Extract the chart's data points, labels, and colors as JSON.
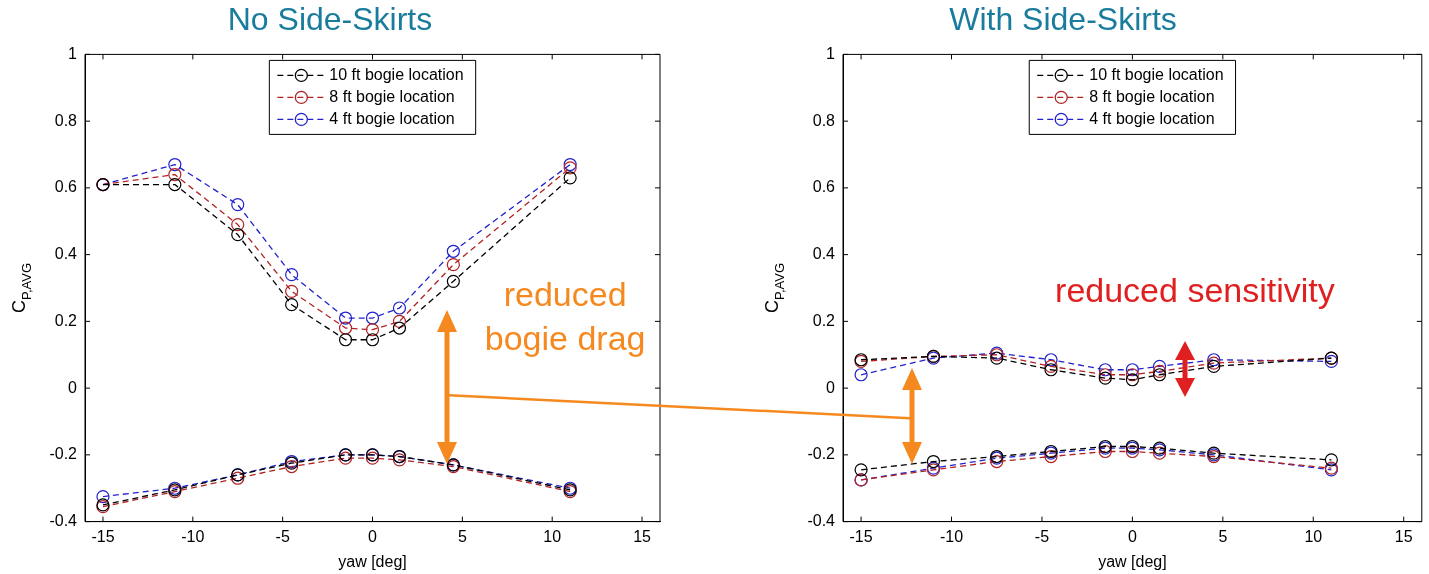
{
  "chart_data": [
    {
      "type": "line",
      "title": "No Side-Skirts",
      "xlabel": "yaw [deg]",
      "ylabel": "C$_{P,AVG}$",
      "x": [
        -15,
        -11,
        -7.5,
        -4.5,
        -1.5,
        0,
        1.5,
        4.5,
        11
      ],
      "series": [
        {
          "name": "10 ft bogie location",
          "color": "#000000",
          "values": [
            0.61,
            0.61,
            0.46,
            0.25,
            0.145,
            0.145,
            0.18,
            0.32,
            0.63
          ]
        },
        {
          "name": "8 ft bogie location",
          "color": "#b22222",
          "values": [
            0.61,
            0.64,
            0.49,
            0.29,
            0.18,
            0.175,
            0.2,
            0.37,
            0.66
          ]
        },
        {
          "name": "4 ft bogie location",
          "color": "#2222cc",
          "values": [
            0.61,
            0.67,
            0.55,
            0.34,
            0.21,
            0.21,
            0.24,
            0.41,
            0.67
          ]
        },
        {
          "color": "#000000",
          "values": [
            -0.35,
            -0.305,
            -0.26,
            -0.225,
            -0.2,
            -0.2,
            -0.205,
            -0.23,
            -0.305
          ]
        },
        {
          "color": "#b22222",
          "values": [
            -0.355,
            -0.31,
            -0.27,
            -0.235,
            -0.21,
            -0.21,
            -0.215,
            -0.235,
            -0.31
          ]
        },
        {
          "color": "#2222cc",
          "values": [
            -0.325,
            -0.3,
            -0.26,
            -0.22,
            -0.2,
            -0.2,
            -0.205,
            -0.23,
            -0.3
          ]
        }
      ],
      "xlim": [
        -16,
        16
      ],
      "ylim": [
        -0.4,
        1
      ],
      "xticks": [
        -15,
        -10,
        -5,
        0,
        5,
        10,
        15
      ],
      "yticks": [
        -0.4,
        -0.2,
        0,
        0.2,
        0.4,
        0.6,
        0.8,
        1
      ],
      "legend": "top",
      "marker": "circle",
      "line_style": "dashed",
      "annotations": [
        "reduced bogie drag"
      ]
    },
    {
      "type": "line",
      "title": "With Side-Skirts",
      "xlabel": "yaw [deg]",
      "ylabel": "C$_{P,AVG}$",
      "x": [
        -15,
        -11,
        -7.5,
        -4.5,
        -1.5,
        0,
        1.5,
        4.5,
        11
      ],
      "series": [
        {
          "name": "10 ft bogie location",
          "color": "#000000",
          "values": [
            0.085,
            0.095,
            0.09,
            0.055,
            0.03,
            0.025,
            0.04,
            0.065,
            0.09
          ]
        },
        {
          "name": "8 ft bogie location",
          "color": "#b22222",
          "values": [
            0.08,
            0.095,
            0.1,
            0.065,
            0.04,
            0.04,
            0.05,
            0.075,
            0.09
          ]
        },
        {
          "name": "4 ft bogie location",
          "color": "#2222cc",
          "values": [
            0.04,
            0.09,
            0.105,
            0.085,
            0.055,
            0.055,
            0.065,
            0.085,
            0.08
          ]
        },
        {
          "color": "#000000",
          "values": [
            -0.245,
            -0.22,
            -0.205,
            -0.19,
            -0.175,
            -0.175,
            -0.18,
            -0.195,
            -0.215
          ]
        },
        {
          "color": "#b22222",
          "values": [
            -0.275,
            -0.245,
            -0.22,
            -0.205,
            -0.19,
            -0.19,
            -0.195,
            -0.205,
            -0.24
          ]
        },
        {
          "color": "#2222cc",
          "values": [
            -0.275,
            -0.24,
            -0.21,
            -0.195,
            -0.18,
            -0.18,
            -0.185,
            -0.2,
            -0.245
          ]
        }
      ],
      "xlim": [
        -16,
        16
      ],
      "ylim": [
        -0.4,
        1
      ],
      "xticks": [
        -15,
        -10,
        -5,
        0,
        5,
        10,
        15
      ],
      "yticks": [
        -0.4,
        -0.2,
        0,
        0.2,
        0.4,
        0.6,
        0.8,
        1
      ],
      "legend": "top",
      "marker": "circle",
      "line_style": "dashed",
      "annotations": [
        "reduced sensitivity"
      ]
    }
  ]
}
